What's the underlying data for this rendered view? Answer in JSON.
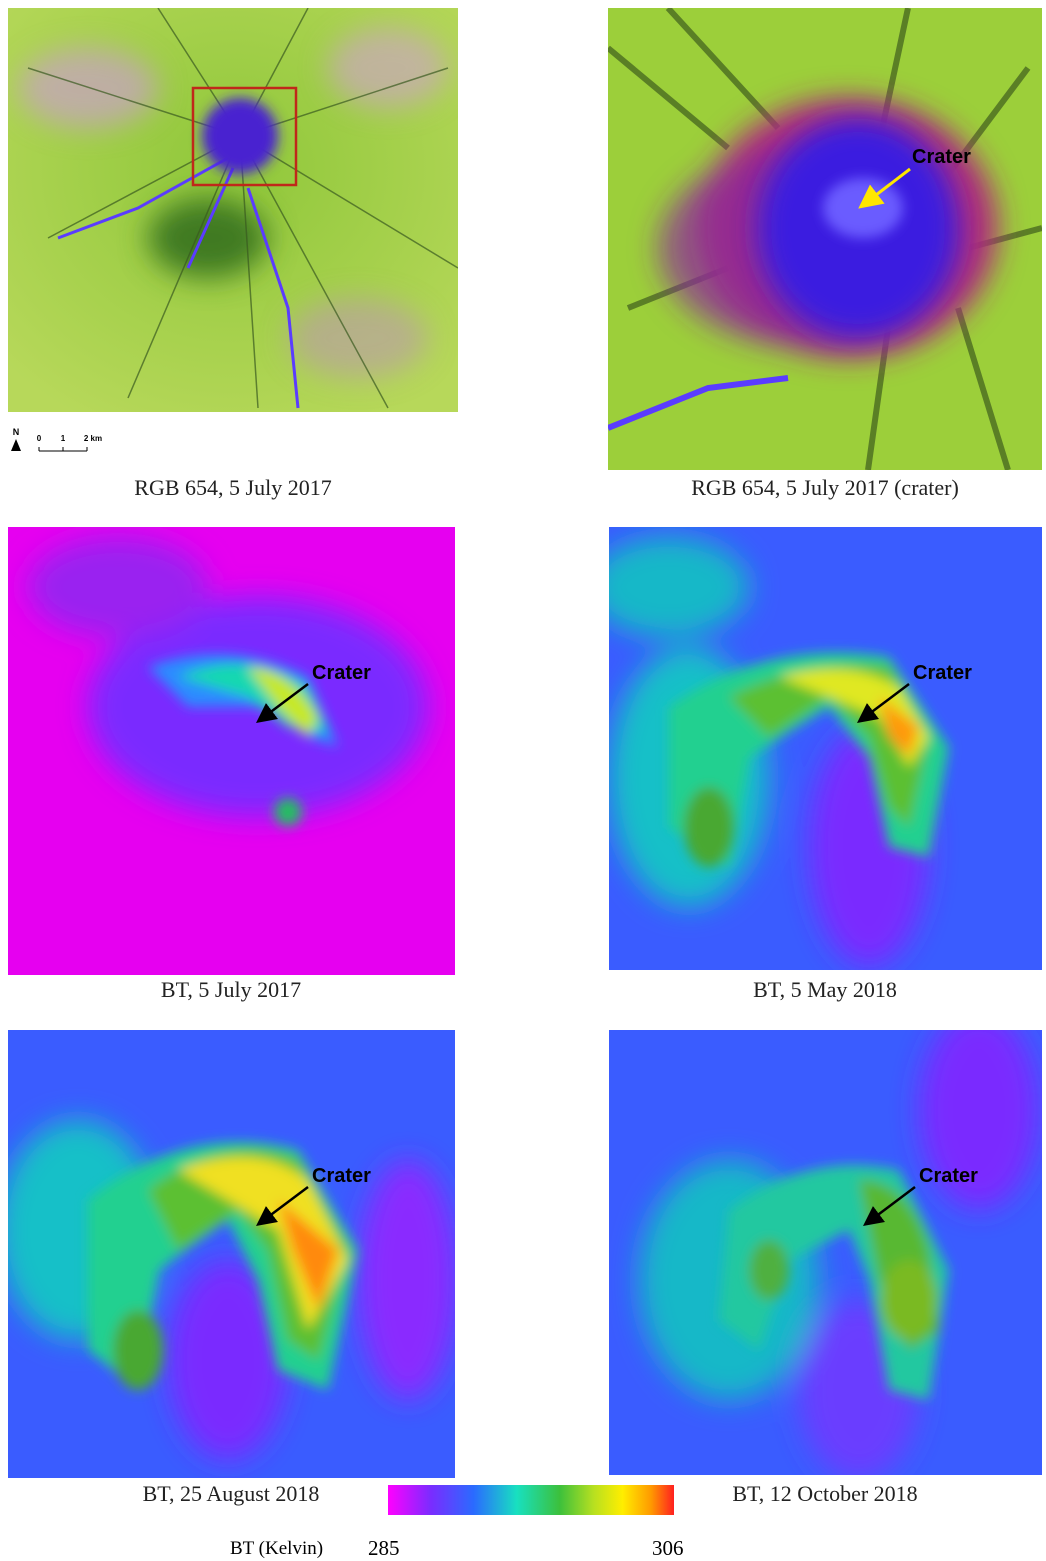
{
  "panels": [
    {
      "caption": "RGB 654, 5 July 2017"
    },
    {
      "caption": "RGB 654, 5 July 2017 (crater)",
      "annotation": "Crater"
    },
    {
      "caption": "BT, 5 July 2017",
      "annotation": "Crater"
    },
    {
      "caption": "BT, 5 May 2018",
      "annotation": "Crater"
    },
    {
      "caption": "BT, 25 August 2018",
      "annotation": "Crater"
    },
    {
      "caption": "BT, 12 October 2018",
      "annotation": "Crater"
    }
  ],
  "scale_bar": {
    "north": "N",
    "ticks": [
      "0",
      "1",
      "2 km"
    ]
  },
  "colorbar": {
    "label": "BT (Kelvin)",
    "min": 285,
    "max": 306
  }
}
